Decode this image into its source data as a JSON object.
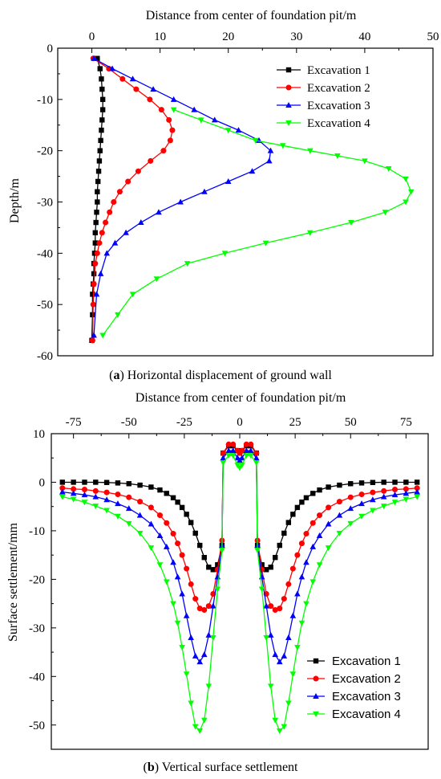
{
  "colors": {
    "series": [
      "#000000",
      "#ff0000",
      "#0000ff",
      "#00ff00"
    ]
  },
  "chart_data": [
    {
      "type": "line",
      "caption_letter": "a",
      "caption_rest": ") Horizontal displacement of ground wall",
      "xlabel": "Distance from center of foundation pit/m",
      "ylabel": "Depth/m",
      "xlim": [
        -5,
        50
      ],
      "ylim": [
        -60,
        0
      ],
      "xticks": [
        "0",
        "10",
        "20",
        "30",
        "40",
        "50"
      ],
      "yticks": [
        "0",
        "-10",
        "-20",
        "-30",
        "-40",
        "-50",
        "-60"
      ],
      "legend_position": "top-right",
      "series": [
        {
          "name": "Excavation 1",
          "marker": "square",
          "x": [
            0.8,
            1.2,
            1.4,
            1.5,
            1.6,
            1.6,
            1.5,
            1.4,
            1.3,
            1.2,
            1.1,
            1.0,
            0.9,
            0.8,
            0.8,
            0.7,
            0.6,
            0.5,
            0.5,
            0.4,
            0.3,
            0.3,
            0.2,
            0.1,
            0.1,
            0.0
          ],
          "y": [
            -2,
            -4,
            -6,
            -8,
            -10,
            -12,
            -14,
            -16,
            -18,
            -20,
            -22,
            -24,
            -26,
            -28,
            -30,
            -32,
            -34,
            -36,
            -38,
            -40,
            -42,
            -44,
            -46,
            -48,
            -52,
            -57
          ]
        },
        {
          "name": "Excavation 2",
          "marker": "circle",
          "x": [
            0.2,
            2.5,
            4.5,
            6.5,
            8.5,
            10.2,
            11.3,
            11.8,
            11.5,
            10.5,
            8.6,
            6.8,
            5.3,
            4.1,
            3.2,
            2.6,
            2.0,
            1.5,
            1.1,
            0.8,
            0.5,
            0.3,
            0.2,
            0.1
          ],
          "y": [
            -2,
            -4,
            -6,
            -8,
            -10,
            -12,
            -14,
            -16,
            -18,
            -20,
            -22,
            -24,
            -26,
            -28,
            -30,
            -32,
            -34,
            -36,
            -38,
            -40,
            -42,
            -46,
            -50,
            -57
          ]
        },
        {
          "name": "Excavation 3",
          "marker": "triangle-up",
          "x": [
            0.3,
            3.0,
            6.0,
            9.0,
            12.0,
            15.0,
            18.0,
            21.5,
            24.5,
            26.2,
            26.0,
            23.5,
            20.0,
            16.5,
            13.0,
            9.8,
            7.2,
            5.0,
            3.4,
            2.2,
            1.3,
            0.7,
            0.3
          ],
          "y": [
            -2,
            -4,
            -6,
            -8,
            -10,
            -12,
            -14,
            -16,
            -18,
            -20,
            -22,
            -24,
            -26,
            -28,
            -30,
            -32,
            -34,
            -36,
            -38,
            -40,
            -44,
            -48,
            -56
          ]
        },
        {
          "name": "Excavation 4",
          "marker": "triangle-down",
          "x": [
            12.0,
            16.0,
            20.0,
            24.0,
            28.0,
            32.0,
            36.0,
            40.0,
            43.5,
            46.0,
            46.8,
            46.0,
            43.0,
            38.0,
            32.0,
            25.5,
            19.5,
            14.0,
            9.5,
            6.0,
            3.8,
            1.6
          ],
          "y": [
            -12,
            -14,
            -16,
            -18,
            -19,
            -20,
            -21,
            -22,
            -23.5,
            -25.5,
            -28,
            -30,
            -32,
            -34,
            -36,
            -38,
            -40,
            -42,
            -45,
            -48,
            -52,
            -56
          ]
        }
      ]
    },
    {
      "type": "line",
      "caption_letter": "b",
      "caption_rest": ") Vertical surface settlement",
      "xlabel": "Distance from center of foundation pit/m",
      "ylabel": "Surface settlement/mm",
      "xlim": [
        -85,
        85
      ],
      "ylim": [
        -55,
        10
      ],
      "xticks": [
        "-75",
        "-50",
        "-25",
        "0",
        "25",
        "50",
        "75"
      ],
      "yticks": [
        "10",
        "0",
        "-10",
        "-20",
        "-30",
        "-40",
        "-50"
      ],
      "legend_position": "bottom-right",
      "x_half": [
        8,
        10,
        12,
        14,
        16,
        18,
        20,
        22,
        24,
        26,
        28,
        30,
        33,
        36,
        40,
        45,
        50,
        55,
        60,
        65,
        70,
        75,
        80
      ],
      "series": [
        {
          "name": "Excavation 1",
          "marker": "square",
          "center": [
            [
              -7.5,
              6
            ],
            [
              -5,
              7.5
            ],
            [
              -3,
              7.5
            ],
            [
              -1,
              6.5
            ],
            [
              0,
              6
            ],
            [
              1,
              6.5
            ],
            [
              3,
              7.5
            ],
            [
              5,
              7.5
            ],
            [
              7.5,
              6
            ]
          ],
          "y_half": [
            -13.0,
            -17.0,
            -18.0,
            -17.5,
            -15.5,
            -13.0,
            -10.5,
            -8.3,
            -6.6,
            -5.2,
            -4.1,
            -3.2,
            -2.3,
            -1.6,
            -1.0,
            -0.6,
            -0.3,
            -0.15,
            -0.05,
            0.0,
            0.0,
            0.0,
            0.0
          ]
        },
        {
          "name": "Excavation 2",
          "marker": "circle",
          "center": [
            [
              -7.5,
              6
            ],
            [
              -5,
              7.8
            ],
            [
              -3,
              7.8
            ],
            [
              -1,
              6.5
            ],
            [
              0,
              6
            ],
            [
              1,
              6.5
            ],
            [
              3,
              7.8
            ],
            [
              5,
              7.8
            ],
            [
              7.5,
              6
            ]
          ],
          "y_half": [
            -12.0,
            -18.0,
            -23.0,
            -25.5,
            -26.3,
            -26.0,
            -24.0,
            -21.0,
            -17.8,
            -15.0,
            -12.6,
            -10.6,
            -8.4,
            -6.8,
            -5.2,
            -4.0,
            -3.1,
            -2.5,
            -2.1,
            -1.8,
            -1.5,
            -1.4,
            -1.2
          ]
        },
        {
          "name": "Excavation 3",
          "marker": "triangle-up",
          "center": [
            [
              -7.5,
              5
            ],
            [
              -5,
              6.5
            ],
            [
              -3,
              6.5
            ],
            [
              -1,
              5
            ],
            [
              0,
              4.5
            ],
            [
              1,
              5
            ],
            [
              3,
              6.5
            ],
            [
              5,
              6.5
            ],
            [
              7.5,
              5
            ]
          ],
          "y_half": [
            -13.0,
            -19.5,
            -25.5,
            -31.5,
            -35.5,
            -37.0,
            -35.8,
            -32.0,
            -27.5,
            -23.0,
            -19.5,
            -16.5,
            -13.3,
            -11.0,
            -8.6,
            -6.8,
            -5.4,
            -4.4,
            -3.6,
            -3.0,
            -2.6,
            -2.3,
            -2.0
          ]
        },
        {
          "name": "Excavation 4",
          "marker": "triangle-down",
          "center": [
            [
              -7.5,
              4
            ],
            [
              -5,
              5.5
            ],
            [
              -3,
              5.5
            ],
            [
              -1,
              3.5
            ],
            [
              0,
              3
            ],
            [
              1,
              3.5
            ],
            [
              3,
              5.5
            ],
            [
              5,
              5.5
            ],
            [
              7.5,
              4
            ]
          ],
          "y_half": [
            -14.0,
            -22.0,
            -32.0,
            -42.0,
            -49.0,
            -51.2,
            -50.3,
            -45.5,
            -39.5,
            -34.0,
            -29.0,
            -25.0,
            -20.5,
            -17.0,
            -13.5,
            -10.5,
            -8.5,
            -7.0,
            -5.8,
            -4.9,
            -4.1,
            -3.5,
            -3.0
          ]
        }
      ]
    }
  ]
}
